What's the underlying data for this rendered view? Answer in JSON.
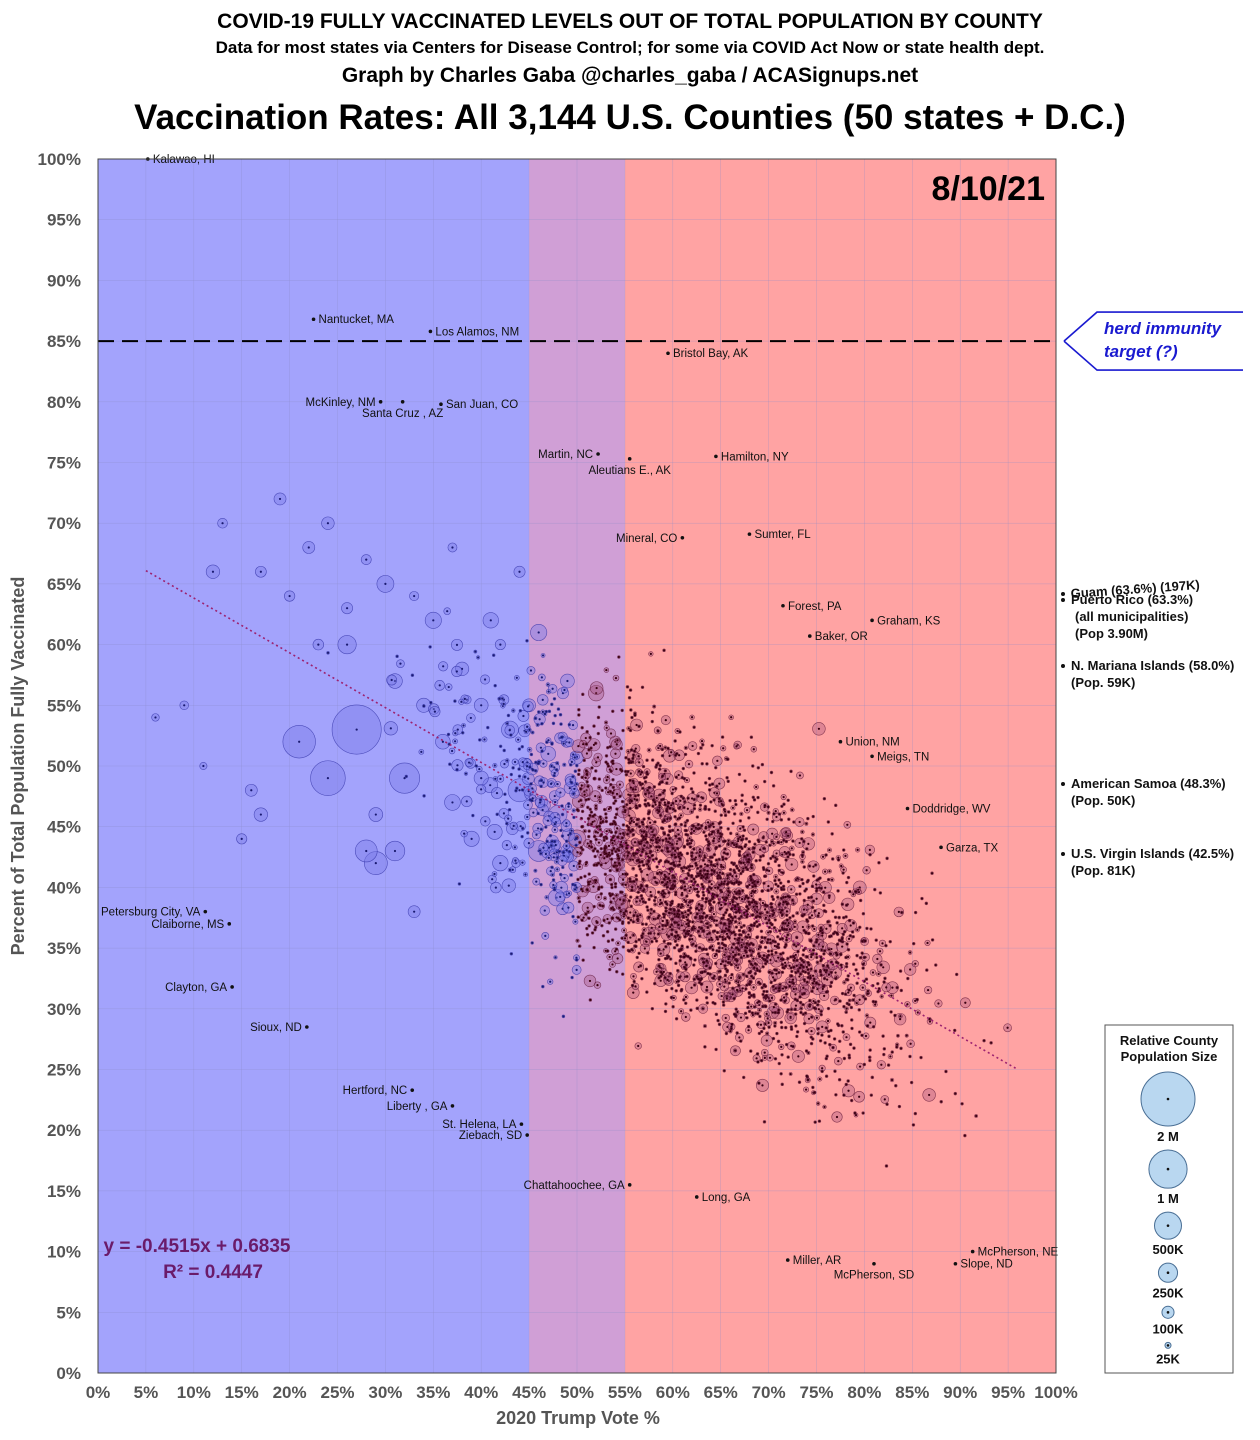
{
  "titles": {
    "line1": "COVID-19 FULLY VACCINATED LEVELS OUT OF TOTAL POPULATION BY COUNTY",
    "line2": "Data for most states via Centers for Disease Control; for some via COVID Act Now or state health dept.",
    "line3": "Graph by Charles Gaba @charles_gaba / ACASignups.net",
    "main": "Vaccination Rates: All 3,144 U.S. Counties (50 states + D.C.)"
  },
  "date_label": "8/10/21",
  "herd": {
    "line1": "herd immunity",
    "line2": "target (?)",
    "value": 85
  },
  "regression": {
    "slope": -0.4515,
    "intercept": 0.6835,
    "x_range": [
      5,
      96
    ],
    "eq_text": "y = -0.4515x + 0.6835",
    "r2_text": "R² = 0.4447"
  },
  "colors": {
    "dem": "#a3a3fc",
    "purple": "#d09fd6",
    "rep": "#ffa3a3",
    "dem_bubble": "#7c7ce8",
    "rep_bubble": "#a04d78",
    "trend": "#9c2270",
    "herd": "#1a1ad0"
  },
  "chart_data": {
    "type": "scatter",
    "title": "Vaccination Rates: All 3,144 U.S. Counties (50 states + D.C.)",
    "xlabel": "2020 Trump Vote %",
    "ylabel": "Percent of Total Population Fully Vaccinated",
    "xlim": [
      0,
      100
    ],
    "ylim": [
      0,
      100
    ],
    "x_ticks": [
      "0%",
      "5%",
      "10%",
      "15%",
      "20%",
      "25%",
      "30%",
      "35%",
      "40%",
      "45%",
      "50%",
      "55%",
      "60%",
      "65%",
      "70%",
      "75%",
      "80%",
      "85%",
      "90%",
      "95%",
      "100%"
    ],
    "y_ticks": [
      "0%",
      "5%",
      "10%",
      "15%",
      "20%",
      "25%",
      "30%",
      "35%",
      "40%",
      "45%",
      "50%",
      "55%",
      "60%",
      "65%",
      "70%",
      "75%",
      "80%",
      "85%",
      "90%",
      "95%",
      "100%"
    ],
    "bands": [
      {
        "from": 0,
        "to": 45,
        "color": "#a3a3fc"
      },
      {
        "from": 45,
        "to": 55,
        "color": "#d09fd6"
      },
      {
        "from": 55,
        "to": 100,
        "color": "#ffa3a3"
      }
    ],
    "labeled_counties": [
      {
        "name": "Kalawao, HI",
        "x": 5.2,
        "y": 100,
        "side": "right"
      },
      {
        "name": "Nantucket, MA",
        "x": 22.5,
        "y": 86.8,
        "side": "right"
      },
      {
        "name": "Los Alamos, NM",
        "x": 34.7,
        "y": 85.8,
        "side": "right"
      },
      {
        "name": "Bristol Bay, AK",
        "x": 59.5,
        "y": 84.0,
        "side": "right"
      },
      {
        "name": "McKinley, NM",
        "x": 29.5,
        "y": 80.0,
        "side": "left"
      },
      {
        "name": "Santa Cruz , AZ",
        "x": 31.8,
        "y": 80.0,
        "side": "below"
      },
      {
        "name": "San Juan, CO",
        "x": 35.8,
        "y": 79.8,
        "side": "right"
      },
      {
        "name": "Martin, NC",
        "x": 52.2,
        "y": 75.7,
        "side": "left"
      },
      {
        "name": "Aleutians E., AK",
        "x": 55.5,
        "y": 75.3,
        "side": "below"
      },
      {
        "name": "Hamilton, NY",
        "x": 64.5,
        "y": 75.5,
        "side": "right"
      },
      {
        "name": "Mineral, CO",
        "x": 61.0,
        "y": 68.8,
        "side": "left"
      },
      {
        "name": "Sumter, FL",
        "x": 68.0,
        "y": 69.1,
        "side": "right"
      },
      {
        "name": "Forest, PA",
        "x": 71.5,
        "y": 63.2,
        "side": "right"
      },
      {
        "name": "Graham, KS",
        "x": 80.8,
        "y": 62.0,
        "side": "right"
      },
      {
        "name": "Baker, OR",
        "x": 74.3,
        "y": 60.7,
        "side": "right"
      },
      {
        "name": "Union, NM",
        "x": 77.5,
        "y": 52.0,
        "side": "right"
      },
      {
        "name": "Meigs, TN",
        "x": 80.8,
        "y": 50.8,
        "side": "right"
      },
      {
        "name": "Doddridge, WV",
        "x": 84.5,
        "y": 46.5,
        "side": "right"
      },
      {
        "name": "Garza, TX",
        "x": 88.0,
        "y": 43.3,
        "side": "right"
      },
      {
        "name": "Petersburg City, VA",
        "x": 11.2,
        "y": 38.0,
        "side": "left"
      },
      {
        "name": "Claiborne, MS",
        "x": 13.7,
        "y": 37.0,
        "side": "left"
      },
      {
        "name": "Clayton, GA",
        "x": 14.0,
        "y": 31.8,
        "side": "left"
      },
      {
        "name": "Sioux, ND",
        "x": 21.8,
        "y": 28.5,
        "side": "left"
      },
      {
        "name": "Hertford, NC",
        "x": 32.8,
        "y": 23.3,
        "side": "left"
      },
      {
        "name": "Liberty , GA",
        "x": 37.0,
        "y": 22.0,
        "side": "left"
      },
      {
        "name": "St. Helena, LA",
        "x": 44.2,
        "y": 20.5,
        "side": "left"
      },
      {
        "name": "Ziebach, SD",
        "x": 44.8,
        "y": 19.6,
        "side": "left"
      },
      {
        "name": "Chattahoochee, GA",
        "x": 55.5,
        "y": 15.5,
        "side": "left"
      },
      {
        "name": "Long, GA",
        "x": 62.5,
        "y": 14.5,
        "side": "right"
      },
      {
        "name": "Miller, AR",
        "x": 72.0,
        "y": 9.3,
        "side": "right"
      },
      {
        "name": "McPherson, SD",
        "x": 81.0,
        "y": 9.0,
        "side": "below"
      },
      {
        "name": "Slope, ND",
        "x": 89.5,
        "y": 9.0,
        "side": "right"
      },
      {
        "name": "McPherson, NE",
        "x": 91.3,
        "y": 10.0,
        "side": "right"
      }
    ],
    "territories": [
      {
        "line1": "Guam (63.6%) (197K)",
        "line2": "",
        "line3": "",
        "y": 63.6
      },
      {
        "line1": "Puerto Rico (63.3%)",
        "line2": "(all municipalities)",
        "line3": "(Pop 3.90M)",
        "y": 63.3
      },
      {
        "line1": "N. Mariana Islands (58.0%)",
        "line2": "(Pop. 59K)",
        "line3": "",
        "y": 58.0
      },
      {
        "line1": "American Samoa (48.3%)",
        "line2": "(Pop. 50K)",
        "line3": "",
        "y": 48.3
      },
      {
        "line1": "U.S. Virgin Islands (42.5%)",
        "line2": "(Pop. 81K)",
        "line3": "",
        "y": 42.5
      }
    ],
    "legend": {
      "title1": "Relative County",
      "title2": "Population Size",
      "items": [
        {
          "label": "2 M",
          "pop": 2000000
        },
        {
          "label": "1 M",
          "pop": 1000000
        },
        {
          "label": "500K",
          "pop": 500000
        },
        {
          "label": "250K",
          "pop": 250000
        },
        {
          "label": "100K",
          "pop": 100000
        },
        {
          "label": "25K",
          "pop": 25000
        }
      ]
    },
    "large_counties": [
      [
        27,
        53,
        5000000
      ],
      [
        24,
        49,
        2500000
      ],
      [
        21,
        52,
        2200000
      ],
      [
        32,
        49,
        1900000
      ],
      [
        28,
        43,
        1000000
      ],
      [
        29,
        42,
        1100000
      ],
      [
        31,
        43,
        800000
      ],
      [
        26,
        60,
        700000
      ],
      [
        30,
        65,
        600000
      ],
      [
        35,
        62,
        550000
      ],
      [
        41,
        62,
        500000
      ],
      [
        44,
        48,
        1100000
      ],
      [
        46,
        43,
        900000
      ],
      [
        48,
        46,
        700000
      ],
      [
        50,
        44,
        650000
      ],
      [
        52,
        56,
        500000
      ],
      [
        46,
        61,
        550000
      ],
      [
        40,
        55,
        400000
      ],
      [
        38,
        58,
        380000
      ],
      [
        34,
        55,
        420000
      ],
      [
        31,
        57,
        450000
      ],
      [
        12,
        66,
        380000
      ],
      [
        13,
        70,
        200000
      ],
      [
        19,
        72,
        300000
      ],
      [
        17,
        66,
        250000
      ],
      [
        24,
        70,
        330000
      ],
      [
        22,
        68,
        300000
      ],
      [
        17,
        46,
        380000
      ],
      [
        16,
        48,
        300000
      ],
      [
        15,
        44,
        220000
      ],
      [
        9,
        55,
        160000
      ],
      [
        6,
        54,
        120000
      ],
      [
        11,
        50,
        110000
      ],
      [
        43,
        53,
        600000
      ],
      [
        37,
        47,
        520000
      ],
      [
        39,
        44,
        480000
      ],
      [
        42,
        42,
        500000
      ],
      [
        33,
        38,
        300000
      ],
      [
        29,
        46,
        400000
      ],
      [
        36,
        52,
        450000
      ],
      [
        40,
        49,
        420000
      ],
      [
        45,
        55,
        350000
      ],
      [
        47,
        51,
        450000
      ],
      [
        49,
        57,
        400000
      ],
      [
        51,
        48,
        320000
      ],
      [
        53,
        42,
        300000
      ],
      [
        54,
        52,
        260000
      ],
      [
        23,
        60,
        240000
      ],
      [
        20,
        64,
        230000
      ],
      [
        26,
        63,
        260000
      ],
      [
        28,
        67,
        210000
      ],
      [
        33,
        64,
        180000
      ],
      [
        37,
        68,
        170000
      ],
      [
        42,
        60,
        220000
      ],
      [
        44,
        66,
        260000
      ]
    ]
  }
}
